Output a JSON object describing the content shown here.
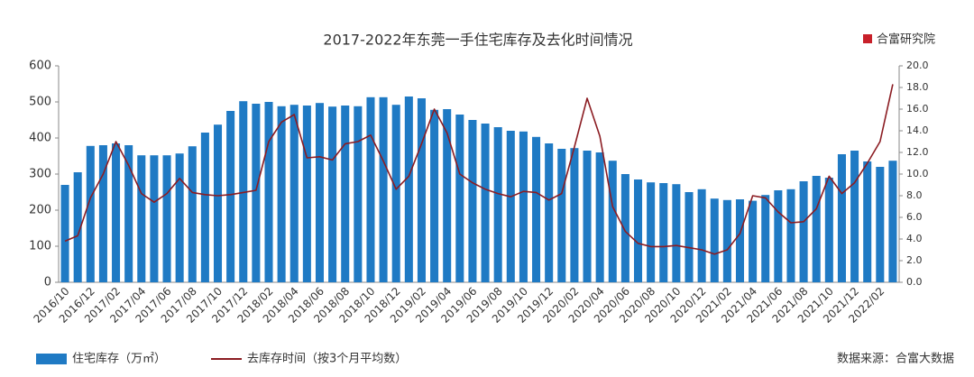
{
  "chart_data": {
    "type": "combo",
    "title": "2017-2022年东莞一手住宅库存及去化时间情况",
    "brand": "合富研究院",
    "source": "数据来源：合富大数据",
    "categories": [
      "2016/10",
      null,
      "2016/12",
      null,
      "2017/02",
      null,
      "2017/04",
      null,
      "2017/06",
      null,
      "2017/08",
      null,
      "2017/10",
      null,
      "2017/12",
      null,
      "2018/02",
      null,
      "2018/04",
      null,
      "2018/06",
      null,
      "2018/08",
      null,
      "2018/10",
      null,
      "2018/12",
      null,
      "2019/02",
      null,
      "2019/04",
      null,
      "2019/06",
      null,
      "2019/08",
      null,
      "2019/10",
      null,
      "2019/12",
      null,
      "2020/02",
      null,
      "2020/04",
      null,
      "2020/06",
      null,
      "2020/08",
      null,
      "2020/10",
      null,
      "2020/12",
      null,
      "2021/02",
      null,
      "2021/04",
      null,
      "2021/06",
      null,
      "2021/08",
      null,
      "2021/10",
      null,
      "2021/12",
      null,
      "2022/02",
      null
    ],
    "series": [
      {
        "name": "住宅库存（万㎡）",
        "type": "bar",
        "color": "#1f7ac4",
        "values": [
          270,
          305,
          378,
          380,
          385,
          380,
          352,
          352,
          352,
          357,
          377,
          415,
          437,
          475,
          502,
          495,
          500,
          488,
          492,
          490,
          497,
          487,
          490,
          488,
          513,
          513,
          492,
          515,
          510,
          478,
          480,
          465,
          450,
          440,
          430,
          420,
          418,
          403,
          385,
          370,
          372,
          365,
          360,
          337,
          300,
          285,
          277,
          275,
          272,
          250,
          258,
          232,
          228,
          230,
          226,
          242,
          255,
          258,
          280,
          295,
          290,
          355,
          365,
          335,
          320,
          337
        ]
      },
      {
        "name": "去库存时间（按3个月平均数）",
        "type": "line",
        "axis": "y2",
        "color": "#8b1c22",
        "values": [
          3.8,
          4.3,
          7.8,
          10.0,
          13.0,
          10.8,
          8.2,
          7.4,
          8.2,
          9.6,
          8.3,
          8.1,
          8.0,
          8.1,
          8.3,
          8.5,
          13.0,
          14.8,
          15.5,
          11.5,
          11.6,
          11.3,
          12.8,
          13.0,
          13.6,
          11.2,
          8.6,
          9.8,
          12.8,
          16.0,
          13.8,
          10.0,
          9.2,
          8.6,
          8.2,
          7.9,
          8.4,
          8.3,
          7.6,
          8.2,
          12.5,
          17.0,
          13.5,
          7.0,
          4.7,
          3.6,
          3.3,
          3.3,
          3.4,
          3.2,
          3.0,
          2.6,
          3.0,
          4.5,
          8.0,
          7.8,
          6.5,
          5.5,
          5.6,
          6.8,
          9.8,
          8.2,
          9.2,
          11.0,
          13.0,
          18.3
        ]
      }
    ],
    "ylim": [
      0,
      600
    ],
    "yticks": [
      0,
      100,
      200,
      300,
      400,
      500,
      600
    ],
    "y2lim": [
      0,
      20
    ],
    "y2ticks": [
      {
        "value": 0,
        "label": "0.0"
      },
      {
        "value": 2,
        "label": "2.0"
      },
      {
        "value": 4,
        "label": "4.0"
      },
      {
        "value": 6,
        "label": "6.0"
      },
      {
        "value": 8,
        "label": "8.0"
      },
      {
        "value": 10,
        "label": "10.0"
      },
      {
        "value": 12,
        "label": "12.0"
      },
      {
        "value": 14,
        "label": "14.0"
      },
      {
        "value": 16,
        "label": "16.0"
      },
      {
        "value": 18,
        "label": "18.0"
      },
      {
        "value": 20,
        "label": "20.0"
      }
    ],
    "grid": false
  }
}
